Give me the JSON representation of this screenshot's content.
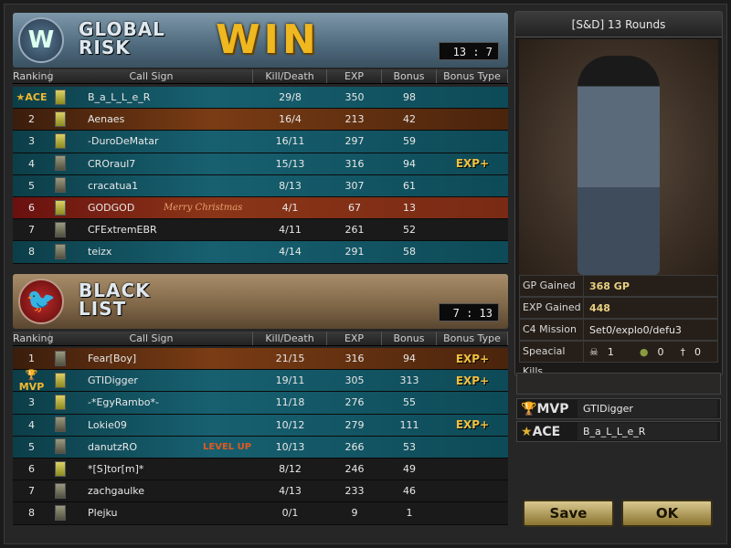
{
  "columns": [
    "Ranking",
    "Call Sign",
    "Kill/Death",
    "EXP",
    "Bonus",
    "Bonus Type"
  ],
  "teams": [
    {
      "name_line1": "GLOBAL",
      "name_line2": "RISK",
      "result": "WIN",
      "score": "13 : 7",
      "emblem_icon": "global-risk-emblem-icon",
      "players": [
        {
          "rank": "ACE",
          "rank_icon": "star-icon",
          "name": "B_a_L_L_e_R",
          "kd": "29/8",
          "exp": "350",
          "bonus": "98",
          "type": "",
          "badge": "y",
          "bg": "teal"
        },
        {
          "rank": "2",
          "name": "Aenaes",
          "kd": "16/4",
          "exp": "213",
          "bonus": "42",
          "type": "",
          "badge": "y",
          "bg": "brown"
        },
        {
          "rank": "3",
          "name": "-DuroDeMatar",
          "kd": "16/11",
          "exp": "297",
          "bonus": "59",
          "type": "",
          "badge": "y",
          "bg": "teal"
        },
        {
          "rank": "4",
          "name": "CROraul7",
          "kd": "15/13",
          "exp": "316",
          "bonus": "94",
          "type": "EXP+",
          "badge": "g",
          "bg": "teal"
        },
        {
          "rank": "5",
          "name": "cracatua1",
          "kd": "8/13",
          "exp": "307",
          "bonus": "61",
          "type": "",
          "badge": "g",
          "bg": "teal"
        },
        {
          "rank": "6",
          "name": "GODGOD",
          "kd": "4/1",
          "exp": "67",
          "bonus": "13",
          "type": "",
          "badge": "y",
          "bg": "red",
          "banner": "Merry Christmas"
        },
        {
          "rank": "7",
          "name": "CFExtremEBR",
          "kd": "4/11",
          "exp": "261",
          "bonus": "52",
          "type": "",
          "badge": "g",
          "bg": "dark"
        },
        {
          "rank": "8",
          "name": "teizx",
          "kd": "4/14",
          "exp": "291",
          "bonus": "58",
          "type": "",
          "badge": "g",
          "bg": "teal"
        }
      ]
    },
    {
      "name_line1": "BLACK",
      "name_line2": "LIST",
      "result": "",
      "score": "7 : 13",
      "emblem_icon": "black-list-emblem-icon",
      "players": [
        {
          "rank": "1",
          "name": "Fear[Boy]",
          "kd": "21/15",
          "exp": "316",
          "bonus": "94",
          "type": "EXP+",
          "badge": "g",
          "bg": "brown"
        },
        {
          "rank": "MVP",
          "rank_icon": "trophy-icon",
          "name": "GTIDigger",
          "kd": "19/11",
          "exp": "305",
          "bonus": "313",
          "type": "EXP+",
          "badge": "y",
          "bg": "teal"
        },
        {
          "rank": "3",
          "name": "-*EgyRambo*-",
          "kd": "11/18",
          "exp": "276",
          "bonus": "55",
          "type": "",
          "badge": "y",
          "bg": "teal"
        },
        {
          "rank": "4",
          "name": "Lokie09",
          "kd": "10/12",
          "exp": "279",
          "bonus": "111",
          "type": "EXP+",
          "badge": "g",
          "bg": "teal"
        },
        {
          "rank": "5",
          "name": "danutzRO",
          "kd": "10/13",
          "exp": "266",
          "bonus": "53",
          "type": "",
          "badge": "g",
          "bg": "teal",
          "level_up": "LEVEL UP"
        },
        {
          "rank": "6",
          "name": "*[S]tor[m]*",
          "kd": "8/12",
          "exp": "246",
          "bonus": "49",
          "type": "",
          "badge": "y",
          "bg": "dark"
        },
        {
          "rank": "7",
          "name": "zachgaulke",
          "kd": "4/13",
          "exp": "233",
          "bonus": "46",
          "type": "",
          "badge": "g",
          "bg": "dark"
        },
        {
          "rank": "8",
          "name": "Plejku",
          "kd": "0/1",
          "exp": "9",
          "bonus": "1",
          "type": "",
          "badge": "g",
          "bg": "dark"
        }
      ]
    }
  ],
  "right": {
    "title": "[S&D] 13 Rounds",
    "stats": [
      {
        "label": "GP Gained",
        "value": "368 GP"
      },
      {
        "label": "EXP Gained",
        "value": "448"
      },
      {
        "label": "C4 Mission",
        "value": "Set0/explo0/defu3"
      }
    ],
    "special": {
      "label": "Speacial Kills",
      "headshot": "1",
      "grenade": "0",
      "knife": "0"
    },
    "mvp": {
      "label": "MVP",
      "name": "GTIDigger"
    },
    "ace": {
      "label": "ACE",
      "name": "B_a_L_L_e_R"
    }
  },
  "buttons": {
    "save": "Save",
    "ok": "OK"
  }
}
